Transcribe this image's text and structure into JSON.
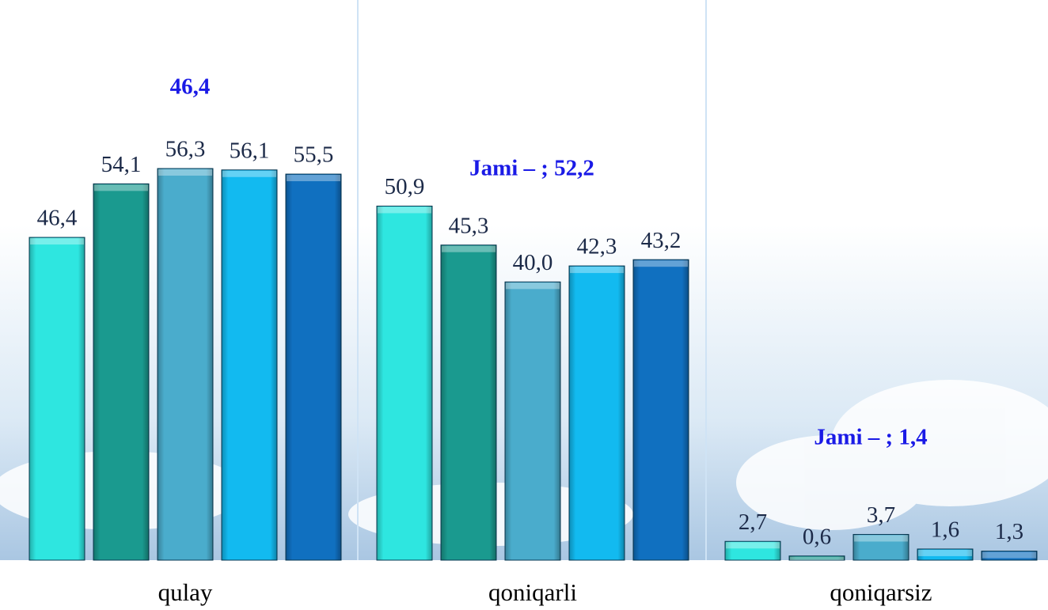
{
  "chart_data": {
    "type": "bar",
    "categories": [
      "qulay",
      "qoniqarli",
      "qoniqarsiz"
    ],
    "series": [
      {
        "color": "#2ee6e0",
        "values": [
          46.4,
          50.9,
          2.7
        ],
        "value_labels": [
          "46,4",
          "50,9",
          "2,7"
        ]
      },
      {
        "color": "#1a9a8f",
        "values": [
          54.1,
          45.3,
          0.6
        ],
        "value_labels": [
          "54,1",
          "45,3",
          "0,6"
        ]
      },
      {
        "color": "#4aaccc",
        "values": [
          56.3,
          40.0,
          3.7
        ],
        "value_labels": [
          "56,3",
          "40,0",
          "3,7"
        ]
      },
      {
        "color": "#12baf0",
        "values": [
          56.1,
          42.3,
          1.6
        ],
        "value_labels": [
          "56,1",
          "42,3",
          "1,6"
        ]
      },
      {
        "color": "#1070c0",
        "values": [
          55.5,
          43.2,
          1.3
        ],
        "value_labels": [
          "55,5",
          "43,2",
          "1,3"
        ]
      }
    ],
    "annotations": [
      "46,4",
      "Jami – ; 52,2",
      "Jami – ; 1,4"
    ]
  }
}
